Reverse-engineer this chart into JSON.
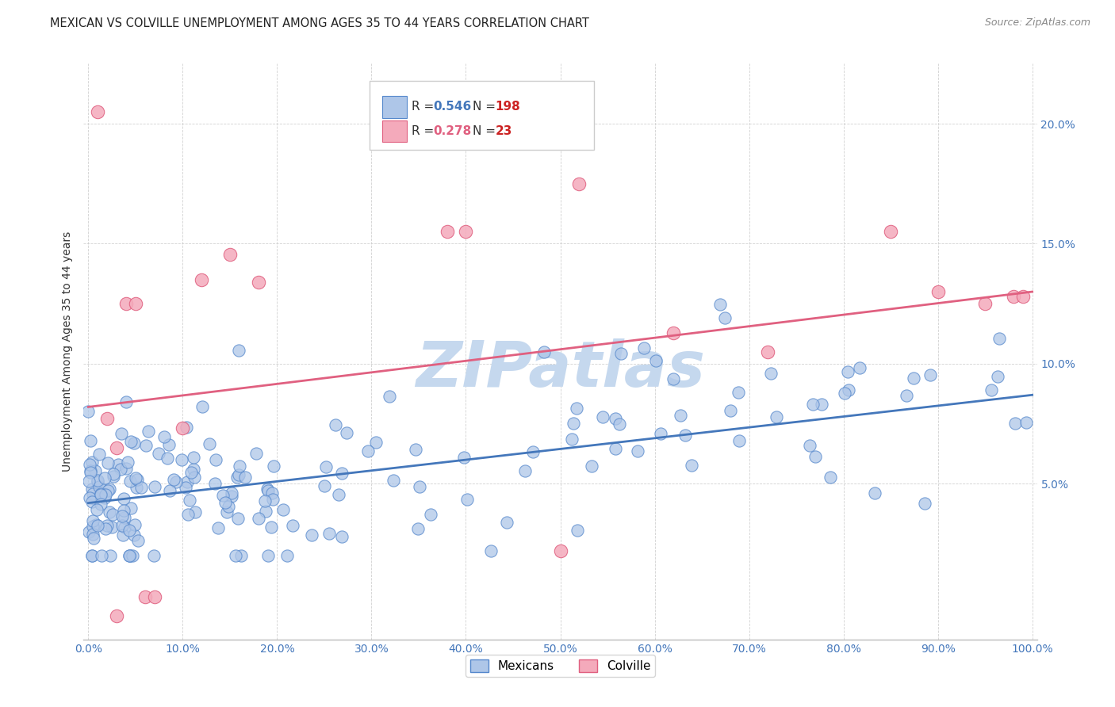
{
  "title": "MEXICAN VS COLVILLE UNEMPLOYMENT AMONG AGES 35 TO 44 YEARS CORRELATION CHART",
  "source": "Source: ZipAtlas.com",
  "xlabel_ticks": [
    "0.0%",
    "10.0%",
    "20.0%",
    "30.0%",
    "40.0%",
    "50.0%",
    "60.0%",
    "70.0%",
    "80.0%",
    "90.0%",
    "100.0%"
  ],
  "ylabel": "Unemployment Among Ages 35 to 44 years",
  "ylabel_ticks": [
    "5.0%",
    "10.0%",
    "15.0%",
    "20.0%"
  ],
  "blue_R": 0.546,
  "blue_N": 198,
  "pink_R": 0.278,
  "pink_N": 23,
  "blue_color": "#AEC6E8",
  "pink_color": "#F4AABB",
  "blue_edge_color": "#5588CC",
  "pink_edge_color": "#E06080",
  "blue_line_color": "#4477BB",
  "pink_line_color": "#E06080",
  "watermark": "ZIPatlas",
  "watermark_color": "#C5D8EE",
  "legend_labels": [
    "Mexicans",
    "Colville"
  ],
  "xlim": [
    -0.005,
    1.005
  ],
  "ylim": [
    -0.015,
    0.225
  ],
  "blue_trendline": [
    0.0,
    0.042,
    1.0,
    0.087
  ],
  "pink_trendline": [
    0.0,
    0.082,
    1.0,
    0.13
  ],
  "seed": 99
}
